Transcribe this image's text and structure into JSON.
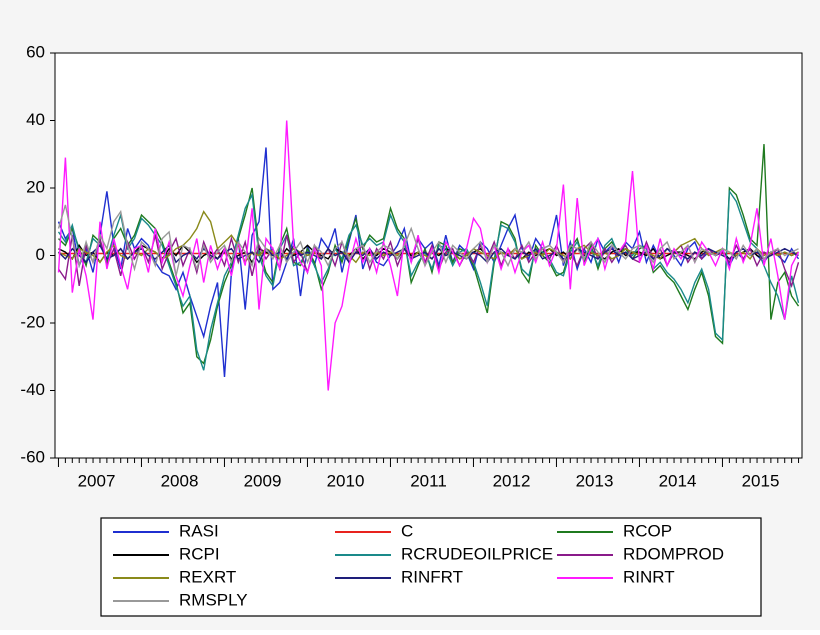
{
  "chart_data": {
    "type": "line",
    "categories": [
      null,
      null,
      null,
      null,
      null,
      null,
      "2007",
      null,
      null,
      null,
      null,
      null,
      null,
      null,
      null,
      null,
      null,
      null,
      "2008",
      null,
      null,
      null,
      null,
      null,
      null,
      null,
      null,
      null,
      null,
      null,
      "2009",
      null,
      null,
      null,
      null,
      null,
      null,
      null,
      null,
      null,
      null,
      null,
      "2010",
      null,
      null,
      null,
      null,
      null,
      null,
      null,
      null,
      null,
      null,
      null,
      "2011",
      null,
      null,
      null,
      null,
      null,
      null,
      null,
      null,
      null,
      null,
      null,
      "2012",
      null,
      null,
      null,
      null,
      null,
      null,
      null,
      null,
      null,
      null,
      null,
      "2013",
      null,
      null,
      null,
      null,
      null,
      null,
      null,
      null,
      null,
      null,
      null,
      "2014",
      null,
      null,
      null,
      null,
      null,
      null,
      null,
      null,
      null,
      null,
      null,
      "2015",
      null,
      null,
      null,
      null,
      null
    ],
    "ylim": [
      -60,
      60
    ],
    "yticks": [
      -60,
      -40,
      -20,
      0,
      20,
      40,
      60
    ],
    "series": [
      {
        "name": "RASI",
        "color": "#1f2fd0",
        "values": [
          10,
          5,
          8,
          -3,
          2,
          -5,
          6,
          19,
          3,
          -4,
          8,
          2,
          5,
          3,
          -2,
          -5,
          -6,
          -10,
          -5,
          -12,
          -18,
          -24,
          -15,
          -8,
          -36,
          -5,
          5,
          -16,
          6,
          10,
          32,
          -10,
          -8,
          -2,
          5,
          -12,
          3,
          -3,
          5,
          2,
          8,
          -5,
          4,
          12,
          -4,
          2,
          -2,
          -3,
          0,
          3,
          8,
          -2,
          5,
          2,
          4,
          -3,
          6,
          -2,
          3,
          1,
          -4,
          4,
          2,
          -2,
          3,
          8,
          12,
          2,
          -1,
          5,
          2,
          3,
          12,
          -3,
          4,
          -4,
          2,
          -2,
          5,
          1,
          3,
          -2,
          4,
          2,
          7,
          -2,
          3,
          -1,
          2,
          0,
          -3,
          2,
          4,
          -1,
          1,
          0,
          2,
          -3,
          1,
          -1,
          2,
          0,
          -2,
          1,
          0,
          -2,
          2,
          -1
        ]
      },
      {
        "name": "C",
        "color": "#e8231e",
        "values": [
          0.6,
          0.6,
          0.6,
          0.6,
          0.6,
          0.6,
          0.6,
          0.6,
          0.6,
          0.6,
          0.6,
          0.6,
          0.6,
          0.6,
          0.6,
          0.6,
          0.6,
          0.6,
          0.6,
          0.6,
          0.6,
          0.6,
          0.6,
          0.6,
          0.6,
          0.6,
          0.6,
          0.6,
          0.6,
          0.6,
          0.6,
          0.6,
          0.6,
          0.6,
          0.6,
          0.6,
          0.6,
          0.6,
          0.6,
          0.6,
          0.6,
          0.6,
          0.6,
          0.6,
          0.6,
          0.6,
          0.6,
          0.6,
          0.6,
          0.6,
          0.6,
          0.6,
          0.6,
          0.6,
          0.6,
          0.6,
          0.6,
          0.6,
          0.6,
          0.6,
          0.6,
          0.6,
          0.6,
          0.6,
          0.6,
          0.6,
          0.6,
          0.6,
          0.6,
          0.6,
          0.6,
          0.6,
          0.6,
          0.6,
          0.6,
          0.6,
          0.6,
          0.6,
          0.6,
          0.6,
          0.6,
          0.6,
          0.6,
          0.6,
          0.6,
          0.6,
          0.6,
          0.6,
          0.6,
          0.6,
          0.6,
          0.6,
          0.6,
          0.6,
          0.6,
          0.6,
          0.6,
          0.6,
          0.6,
          0.6,
          0.6,
          0.6,
          0.6,
          0.6,
          0.6,
          0.6,
          0.6,
          0.6
        ]
      },
      {
        "name": "RCOP",
        "color": "#1f7a1f",
        "values": [
          5,
          3,
          8,
          2,
          -3,
          6,
          4,
          -2,
          5,
          8,
          3,
          6,
          12,
          10,
          8,
          4,
          -2,
          -8,
          -17,
          -14,
          -30,
          -32,
          -25,
          -15,
          -8,
          -3,
          5,
          12,
          20,
          2,
          -5,
          -8,
          3,
          8,
          -2,
          -3,
          2,
          -2,
          -10,
          -5,
          3,
          -2,
          5,
          11,
          2,
          6,
          4,
          5,
          14,
          8,
          5,
          -8,
          -3,
          2,
          -5,
          4,
          3,
          -2,
          2,
          1,
          -3,
          -10,
          -17,
          -2,
          10,
          9,
          5,
          -5,
          -8,
          3,
          0,
          -2,
          -6,
          -5,
          2,
          5,
          -2,
          3,
          -4,
          2,
          4,
          1,
          2,
          -1,
          2,
          3,
          -5,
          -3,
          -6,
          -8,
          -12,
          -16,
          -10,
          -5,
          -12,
          -24,
          -26,
          20,
          18,
          12,
          5,
          3,
          33,
          -19,
          -8,
          -5,
          -12,
          -15
        ]
      },
      {
        "name": "RCPI",
        "color": "#000000",
        "values": [
          2,
          1,
          -1,
          3,
          0,
          1,
          -2,
          1,
          0,
          2,
          -1,
          1,
          3,
          2,
          1,
          -1,
          2,
          0,
          3,
          1,
          -2,
          0,
          1,
          -1,
          2,
          -1,
          0,
          1,
          -2,
          2,
          1,
          0,
          -1,
          2,
          0,
          1,
          3,
          1,
          0,
          -1,
          2,
          1,
          0,
          2,
          -1,
          1,
          0,
          2,
          1,
          -1,
          2,
          0,
          1,
          -2,
          1,
          0,
          2,
          1,
          -1,
          0,
          1,
          2,
          0,
          -1,
          1,
          0,
          2,
          -1,
          1,
          0,
          1,
          2,
          0,
          1,
          -1,
          2,
          0,
          1,
          0,
          -1,
          1,
          2,
          0,
          1,
          1,
          0,
          2,
          -1,
          0,
          1,
          1,
          0,
          -1,
          1,
          2,
          0,
          1,
          -1,
          0,
          1,
          2,
          0,
          -1,
          1,
          0,
          1,
          0,
          1
        ]
      },
      {
        "name": "RCRUDEOILPRICE",
        "color": "#1a8a8a",
        "values": [
          7,
          4,
          9,
          1,
          -2,
          5,
          3,
          -1,
          6,
          12,
          2,
          5,
          11,
          9,
          6,
          3,
          -3,
          -9,
          -15,
          -12,
          -28,
          -34,
          -22,
          -14,
          -6,
          -2,
          6,
          14,
          18,
          0,
          -6,
          -9,
          2,
          6,
          -3,
          -2,
          1,
          -3,
          -8,
          -4,
          2,
          -1,
          6,
          9,
          3,
          5,
          3,
          4,
          12,
          7,
          4,
          -6,
          -2,
          1,
          -4,
          3,
          2,
          -3,
          1,
          2,
          -2,
          -8,
          -15,
          -1,
          9,
          8,
          4,
          -4,
          -6,
          2,
          1,
          -1,
          -5,
          -6,
          1,
          4,
          -1,
          2,
          -3,
          3,
          5,
          0,
          1,
          0,
          3,
          2,
          -4,
          -2,
          -5,
          -7,
          -10,
          -14,
          -8,
          -4,
          -10,
          -23,
          -25,
          19,
          16,
          10,
          4,
          2,
          -3,
          -8,
          -12,
          -19,
          -6,
          -14
        ]
      },
      {
        "name": "RDOMPROD",
        "color": "#8a1a8a",
        "values": [
          -4,
          -7,
          6,
          -9,
          3,
          -2,
          5,
          -3,
          2,
          -6,
          4,
          -1,
          3,
          -2,
          6,
          -4,
          1,
          5,
          -3,
          2,
          -5,
          4,
          -1,
          2,
          -3,
          5,
          -2,
          4,
          -6,
          3,
          -1,
          2,
          -4,
          6,
          -2,
          1,
          -5,
          3,
          -1,
          2,
          -3,
          4,
          -2,
          1,
          3,
          -4,
          2,
          -1,
          4,
          -3,
          2,
          -1,
          5,
          -2,
          3,
          -4,
          1,
          2,
          -3,
          1,
          -2,
          3,
          -1,
          4,
          -3,
          2,
          -1,
          3,
          -2,
          1,
          2,
          -1,
          3,
          -2,
          1,
          -3,
          2,
          4,
          -1,
          2,
          -2,
          1,
          3,
          -1,
          -2,
          4,
          -1,
          2,
          -3,
          1,
          3,
          -2,
          1,
          -1,
          2,
          0,
          1,
          -2,
          3,
          -1,
          2,
          -3,
          1,
          0,
          2,
          -4,
          -9,
          -2
        ]
      },
      {
        "name": "REXRT",
        "color": "#8a8a1a",
        "values": [
          1,
          0,
          -1,
          2,
          1,
          0,
          -2,
          1,
          3,
          0,
          -1,
          1,
          0,
          2,
          1,
          -1,
          0,
          2,
          3,
          5,
          8,
          13,
          10,
          2,
          4,
          6,
          3,
          -2,
          1,
          0,
          2,
          1,
          -1,
          0,
          2,
          1,
          0,
          1,
          -1,
          2,
          0,
          1,
          0,
          -2,
          1,
          0,
          1,
          0,
          1,
          0,
          2,
          -1,
          1,
          0,
          -1,
          2,
          0,
          1,
          -1,
          0,
          2,
          1,
          0,
          -1,
          1,
          0,
          2,
          -1,
          0,
          1,
          0,
          2,
          1,
          0,
          -1,
          2,
          3,
          1,
          0,
          1,
          -1,
          0,
          2,
          1,
          0,
          1,
          0,
          -1,
          2,
          1,
          3,
          4,
          5,
          2,
          0,
          1,
          2,
          1,
          0,
          1,
          -1,
          2,
          0,
          1,
          0,
          1,
          0,
          1
        ]
      },
      {
        "name": "RINFRT",
        "color": "#1e1e7a",
        "values": [
          1,
          -1,
          2,
          0,
          -2,
          1,
          3,
          -1,
          0,
          2,
          -1,
          1,
          2,
          0,
          -1,
          1,
          3,
          -2,
          0,
          1,
          -1,
          2,
          0,
          -1,
          1,
          2,
          -1,
          0,
          1,
          -2,
          2,
          0,
          1,
          -1,
          3,
          0,
          1,
          0,
          -1,
          2,
          0,
          1,
          -2,
          1,
          0,
          2,
          -1,
          1,
          0,
          1,
          2,
          -1,
          0,
          1,
          -1,
          2,
          0,
          1,
          0,
          -1,
          1,
          0,
          -2,
          1,
          2,
          0,
          -1,
          1,
          0,
          2,
          -1,
          0,
          1,
          -1,
          0,
          2,
          1,
          0,
          -1,
          1,
          2,
          0,
          1,
          -1,
          0,
          1,
          -1,
          0,
          2,
          1,
          0,
          -1,
          1,
          0,
          2,
          1,
          0,
          -1,
          1,
          2,
          0,
          1,
          -1,
          0,
          1,
          2,
          1,
          0
        ]
      },
      {
        "name": "RINRT",
        "color": "#ff1aff",
        "values": [
          -5,
          29,
          -11,
          2,
          -6,
          -19,
          10,
          -4,
          5,
          -3,
          -10,
          2,
          3,
          -5,
          8,
          -2,
          4,
          -6,
          -12,
          -3,
          5,
          -8,
          3,
          -4,
          2,
          -6,
          4,
          -3,
          14,
          -16,
          5,
          2,
          -4,
          40,
          3,
          -2,
          -5,
          2,
          -3,
          -40,
          -20,
          -15,
          -3,
          5,
          -2,
          2,
          -5,
          4,
          -3,
          -12,
          5,
          -2,
          6,
          -3,
          2,
          -5,
          4,
          1,
          -3,
          2,
          11,
          8,
          -2,
          3,
          -4,
          2,
          -5,
          1,
          3,
          -2,
          4,
          -3,
          2,
          21,
          -10,
          17,
          -3,
          2,
          5,
          -4,
          3,
          1,
          4,
          25,
          -2,
          3,
          -4,
          5,
          -3,
          2,
          -1,
          3,
          -2,
          4,
          1,
          -3,
          2,
          -4,
          5,
          -2,
          3,
          14,
          -3,
          5,
          -6,
          -19,
          -3,
          1
        ]
      },
      {
        "name": "RMSPLY",
        "color": "#999999",
        "values": [
          8,
          15,
          5,
          -3,
          4,
          -2,
          6,
          2,
          10,
          13,
          3,
          -4,
          4,
          2,
          -3,
          5,
          7,
          -6,
          3,
          2,
          -4,
          3,
          -2,
          1,
          3,
          -2,
          4,
          1,
          -3,
          5,
          2,
          -1,
          3,
          -2,
          1,
          4,
          -2,
          3,
          1,
          -3,
          2,
          4,
          -1,
          2,
          3,
          -2,
          1,
          3,
          2,
          -1,
          3,
          8,
          2,
          -3,
          1,
          4,
          -2,
          3,
          1,
          -1,
          2,
          4,
          -2,
          3,
          1,
          -3,
          2,
          1,
          4,
          -1,
          2,
          3,
          1,
          -2,
          3,
          2,
          -1,
          4,
          1,
          -2,
          3,
          1,
          -1,
          2,
          3,
          1,
          -2,
          2,
          4,
          -1,
          1,
          3,
          -2,
          2,
          1,
          0,
          2,
          1,
          -1,
          3,
          0,
          2,
          -1,
          1,
          2,
          0,
          1,
          2
        ]
      }
    ]
  }
}
